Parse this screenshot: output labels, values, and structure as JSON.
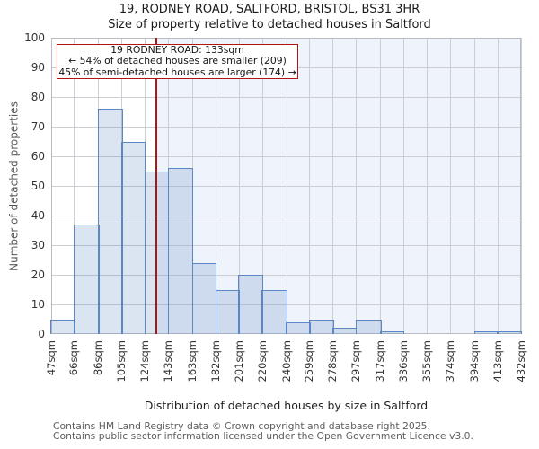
{
  "title": {
    "line1": "19, RODNEY ROAD, SALTFORD, BRISTOL, BS31 3HR",
    "line2": "Size of property relative to detached houses in Saltford"
  },
  "annotation": {
    "line1": "19 RODNEY ROAD: 133sqm",
    "line2": "← 54% of detached houses are smaller (209)",
    "line3": "45% of semi-detached houses are larger (174) →"
  },
  "chart_data": {
    "type": "bar",
    "title": "Size of property relative to detached houses in Saltford",
    "xlabel": "Distribution of detached houses by size in Saltford",
    "ylabel": "Number of detached properties",
    "bin_edges_sqm": [
      47,
      66,
      86,
      105,
      124,
      143,
      163,
      182,
      201,
      220,
      240,
      259,
      278,
      297,
      317,
      336,
      355,
      374,
      394,
      413,
      432
    ],
    "categories": [
      "47sqm",
      "66sqm",
      "86sqm",
      "105sqm",
      "124sqm",
      "143sqm",
      "163sqm",
      "182sqm",
      "201sqm",
      "220sqm",
      "240sqm",
      "259sqm",
      "278sqm",
      "297sqm",
      "317sqm",
      "336sqm",
      "355sqm",
      "374sqm",
      "394sqm",
      "413sqm",
      "432sqm"
    ],
    "values": [
      5,
      37,
      76,
      65,
      55,
      56,
      24,
      15,
      20,
      15,
      4,
      5,
      2,
      5,
      1,
      0,
      0,
      0,
      1,
      1
    ],
    "ylim": [
      0,
      100
    ],
    "ytick_step": 10,
    "grid": true,
    "legend": "none",
    "marker_sqm": 133
  },
  "footer": {
    "line1": "Contains HM Land Registry data © Crown copyright and database right 2025.",
    "line2": "Contains public sector information licensed under the Open Government Licence v3.0."
  },
  "colors": {
    "bar_fill": "rgba(91,135,197,0.22)",
    "bar_border": "#5b87c5",
    "marker": "#b01515",
    "shading": "#eff3fb",
    "grid": "#cdcdd4",
    "frame": "#b9bbc2"
  }
}
